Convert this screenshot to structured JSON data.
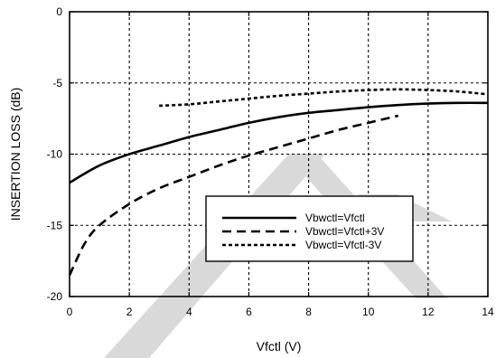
{
  "chart_data": {
    "type": "line",
    "title": "",
    "xlabel": "Vfctl (V)",
    "ylabel": "INSERTION LOSS (dB)",
    "xlim": [
      0,
      14
    ],
    "ylim": [
      -20,
      0
    ],
    "x_ticks": [
      0,
      2,
      4,
      6,
      8,
      10,
      12,
      14
    ],
    "y_ticks": [
      0,
      -5,
      -10,
      -15,
      -20
    ],
    "x_tick_labels": [
      "0",
      "2",
      "4",
      "6",
      "8",
      "10",
      "12",
      "14"
    ],
    "y_tick_labels": [
      "0",
      "-5",
      "-10",
      "-15",
      "-20"
    ],
    "grid": true,
    "legend_position": "lower-right",
    "series": [
      {
        "name": "Vbwctl=Vfctl",
        "style": "solid",
        "color": "#000000",
        "x": [
          0,
          1,
          2,
          3,
          4,
          5,
          6,
          7,
          8,
          9,
          10,
          11,
          12,
          13,
          14
        ],
        "y": [
          -12.0,
          -10.8,
          -10.0,
          -9.4,
          -8.8,
          -8.3,
          -7.8,
          -7.4,
          -7.1,
          -6.9,
          -6.7,
          -6.55,
          -6.45,
          -6.4,
          -6.4
        ]
      },
      {
        "name": "Vbwctl=Vfctl+3V",
        "style": "dashed",
        "color": "#000000",
        "x": [
          0,
          0.5,
          1,
          2,
          3,
          4,
          5,
          6,
          7,
          8,
          9,
          10,
          11
        ],
        "y": [
          -18.5,
          -16.3,
          -15.0,
          -13.5,
          -12.4,
          -11.6,
          -10.8,
          -10.1,
          -9.5,
          -8.9,
          -8.3,
          -7.8,
          -7.3
        ]
      },
      {
        "name": "Vbwctl=Vfctl-3V",
        "style": "dotted",
        "color": "#000000",
        "x": [
          3,
          4,
          5,
          6,
          7,
          8,
          9,
          10,
          11,
          12,
          13,
          14
        ],
        "y": [
          -6.6,
          -6.5,
          -6.3,
          -6.1,
          -5.9,
          -5.75,
          -5.6,
          -5.5,
          -5.45,
          -5.5,
          -5.6,
          -5.8
        ]
      }
    ]
  }
}
